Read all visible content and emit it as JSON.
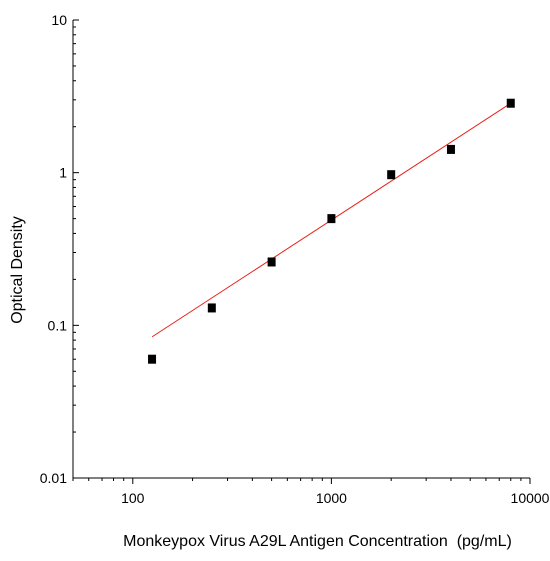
{
  "chart_data": {
    "type": "scatter",
    "title": "",
    "xlabel": "Monkeypox Virus A29L Antigen Concentration  (pg/mL)",
    "ylabel": "Optical Density",
    "xscale": "log",
    "yscale": "log",
    "xlim": [
      50,
      10000
    ],
    "ylim": [
      0.01,
      10
    ],
    "x_ticks": [
      100,
      1000,
      10000
    ],
    "x_tick_labels": [
      "100",
      "1000",
      "10000"
    ],
    "y_ticks": [
      0.01,
      0.1,
      1,
      10
    ],
    "y_tick_labels": [
      "0.01",
      "0.1",
      "1",
      "10"
    ],
    "grid": false,
    "legend": "none",
    "series": [
      {
        "type": "scatter",
        "x": [
          125,
          250,
          500,
          1000,
          2000,
          4000,
          8000
        ],
        "y": [
          0.06,
          0.13,
          0.26,
          0.5,
          0.97,
          1.42,
          2.85
        ]
      }
    ],
    "fit_line": {
      "x": [
        125,
        8000
      ],
      "y": [
        0.084,
        2.85
      ]
    },
    "colors": {
      "points": "#000000",
      "fit_line": "#e8211a",
      "axes": "#000000"
    }
  }
}
